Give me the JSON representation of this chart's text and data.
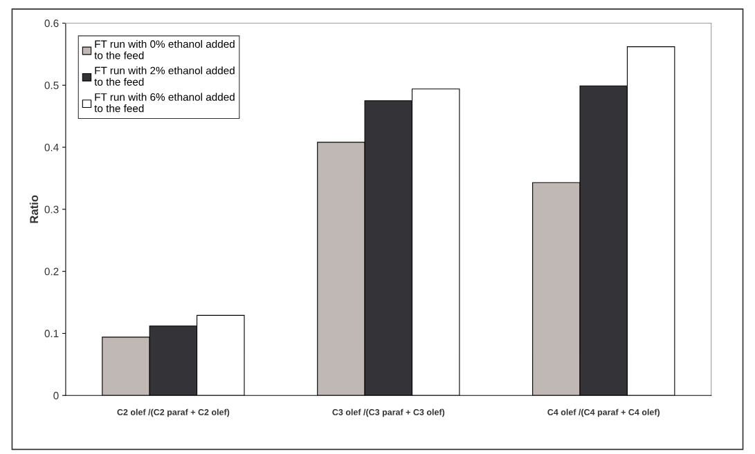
{
  "chart_data": {
    "type": "bar",
    "ylabel": "Ratio",
    "categories": [
      "C2 olef /(C2 paraf + C2 olef)",
      "C3 olef /(C3 paraf + C3 olef)",
      "C4 olef /(C4 paraf + C4 olef)"
    ],
    "series": [
      {
        "name": "FT run with 0% ethanol added\nto the feed",
        "color": "#c0b8b5",
        "values": [
          0.094,
          0.408,
          0.343
        ]
      },
      {
        "name": "FT run with 2% ethanol added\nto the feed",
        "color": "#343337",
        "values": [
          0.112,
          0.475,
          0.499
        ]
      },
      {
        "name": "FT run with 6% ethanol added\nto the feed",
        "color": "#ffffff",
        "values": [
          0.129,
          0.494,
          0.562
        ]
      }
    ],
    "ylim": [
      0,
      0.6
    ],
    "yticks": [
      0,
      0.1,
      0.2,
      0.3,
      0.4,
      0.5,
      0.6
    ],
    "grid": false,
    "legend": "top left"
  }
}
